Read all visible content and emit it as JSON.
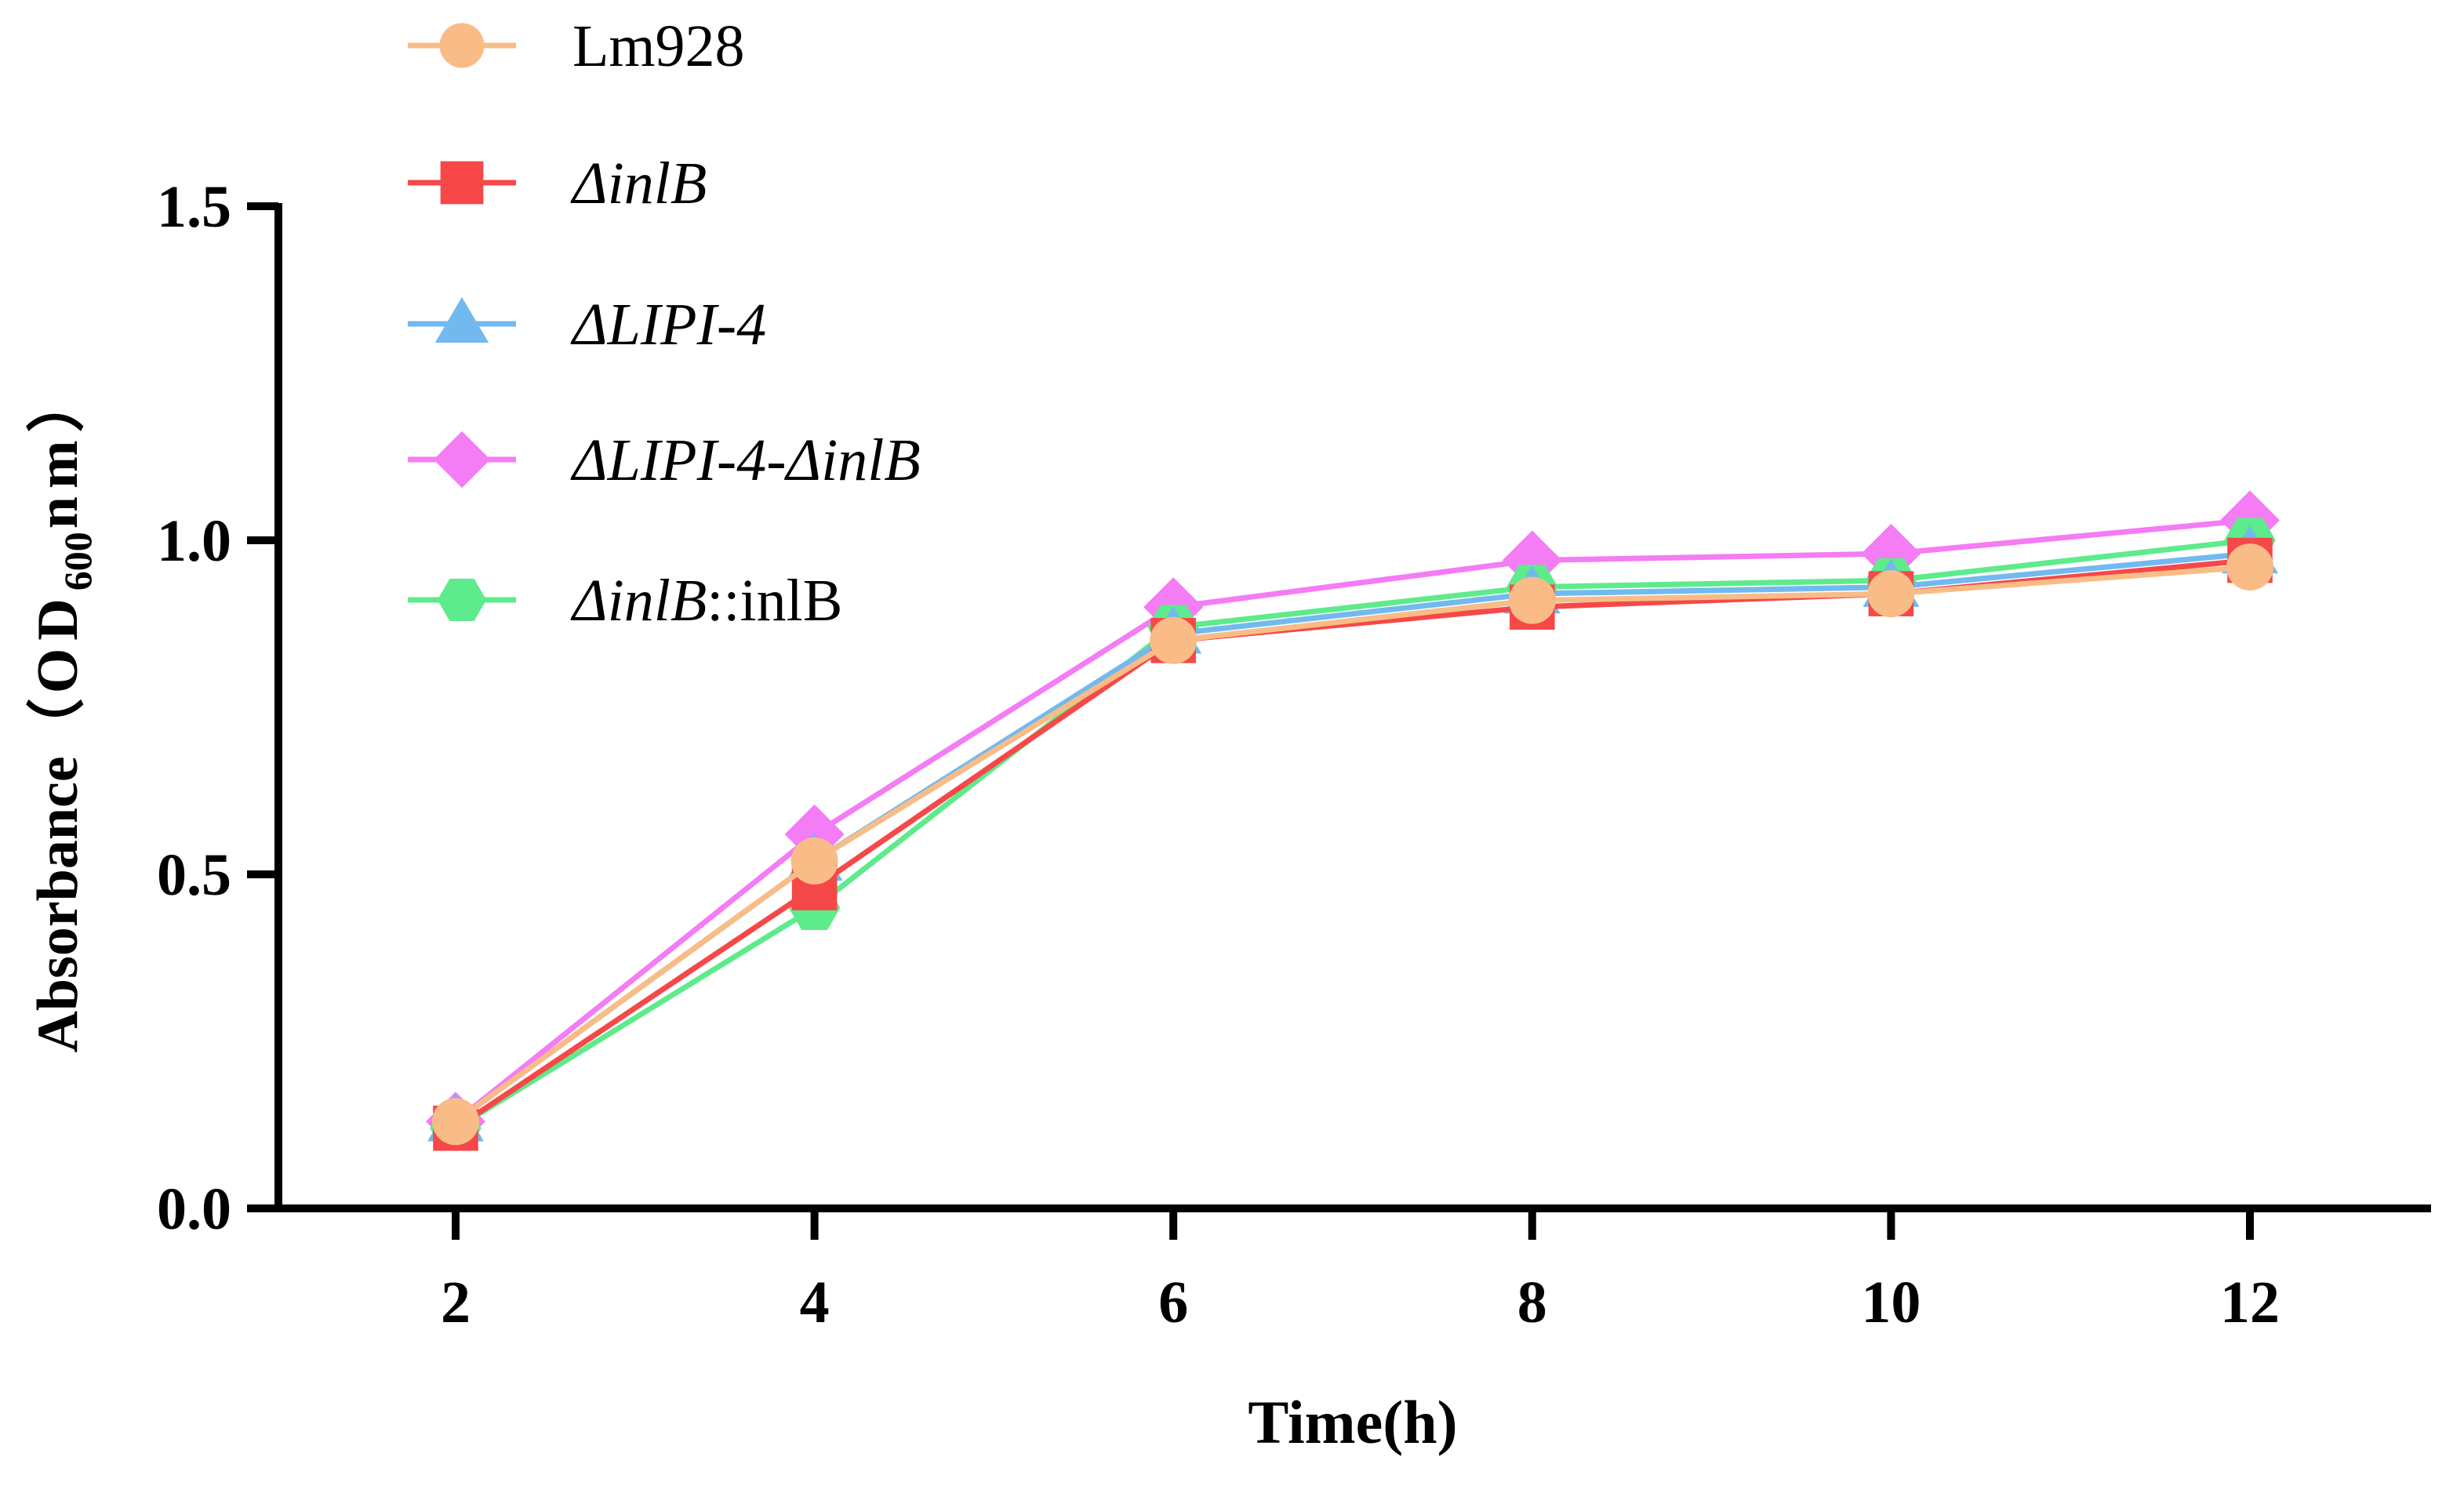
{
  "chart_data": {
    "type": "line",
    "title": "",
    "xlabel": "Time(h)",
    "ylabel": {
      "prefix": "Absorbance",
      "open_paren": "（",
      "od": "OD",
      "subscript": "600",
      "unit": "nm",
      "close_paren": "）"
    },
    "x": [
      2,
      4,
      6,
      8,
      10,
      12
    ],
    "x_tick_labels": [
      "2",
      "4",
      "6",
      "8",
      "10",
      "12"
    ],
    "xlim": [
      1,
      13
    ],
    "ylim": [
      0,
      1.5
    ],
    "y_ticks": [
      0.0,
      0.5,
      1.0,
      1.5
    ],
    "y_tick_labels": [
      "0.0",
      "0.5",
      "1.0",
      "1.5"
    ],
    "grid": false,
    "legend_position": "top-left",
    "series": [
      {
        "name": "Lm928",
        "legend_parts": [
          {
            "text": "Lm928",
            "italic": false
          }
        ],
        "marker": "circle",
        "color": "#F9BC86",
        "values": [
          0.13,
          0.52,
          0.85,
          0.91,
          0.92,
          0.96
        ]
      },
      {
        "name": "ΔinlB",
        "legend_parts": [
          {
            "text": "ΔinlB",
            "italic": true
          }
        ],
        "marker": "square",
        "color": "#F64848",
        "values": [
          0.12,
          0.48,
          0.85,
          0.9,
          0.92,
          0.97
        ]
      },
      {
        "name": "ΔLIPI-4",
        "legend_parts": [
          {
            "text": "ΔLIPI-4",
            "italic": true
          }
        ],
        "marker": "triangle",
        "color": "#72B9F0",
        "values": [
          0.13,
          0.52,
          0.86,
          0.92,
          0.93,
          0.98
        ]
      },
      {
        "name": "ΔLIPI-4-ΔinlB",
        "legend_parts": [
          {
            "text": "ΔLIPI-4-ΔinlB",
            "italic": true
          }
        ],
        "marker": "diamond",
        "color": "#F47CF4",
        "values": [
          0.13,
          0.56,
          0.9,
          0.97,
          0.98,
          1.03
        ]
      },
      {
        "name": "ΔinlB::inlB",
        "legend_parts": [
          {
            "text": "ΔinlB",
            "italic": true
          },
          {
            "text": "::inlB",
            "italic": false
          }
        ],
        "marker": "hexagon",
        "color": "#5EEB8B",
        "values": [
          0.12,
          0.45,
          0.87,
          0.93,
          0.94,
          1.0
        ]
      }
    ]
  }
}
